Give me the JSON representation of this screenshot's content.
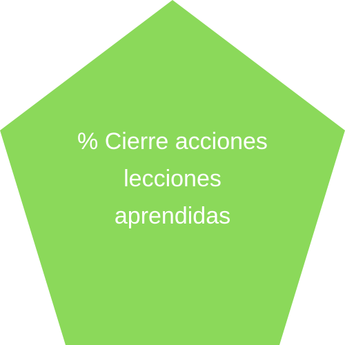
{
  "shape": {
    "type": "pentagon",
    "fill_color": "#8bd95a"
  },
  "label": {
    "lines": [
      "% Cierre acciones",
      "lecciones",
      "aprendidas"
    ],
    "color": "#ffffff"
  }
}
